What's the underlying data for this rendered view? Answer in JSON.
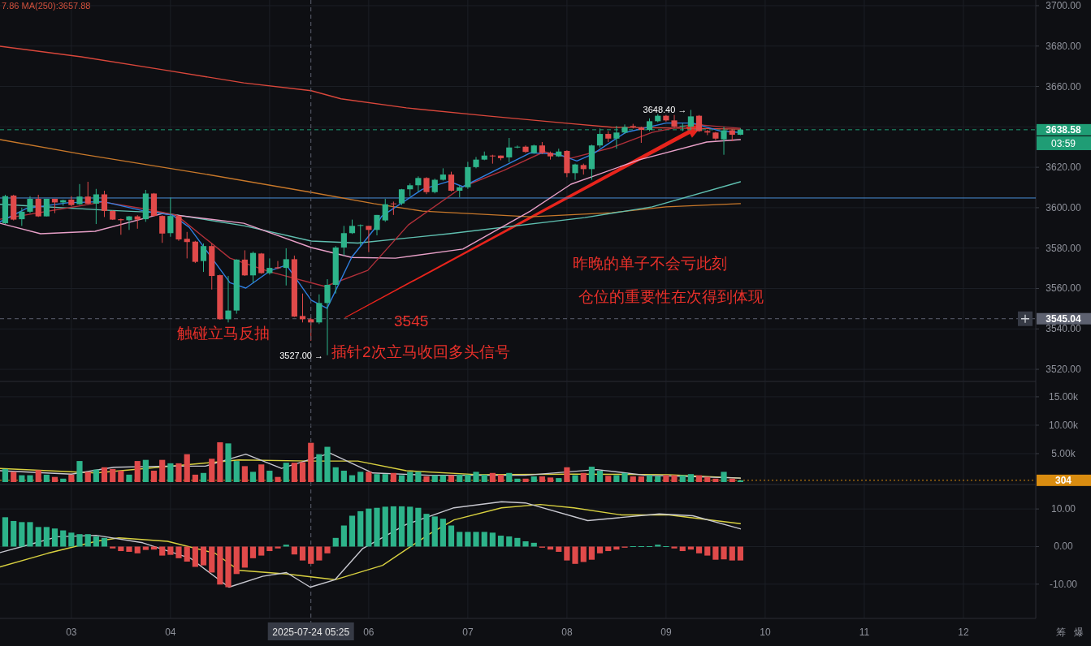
{
  "chart_data": [
    {
      "type": "candlestick",
      "x": [
        2.333,
        2.417,
        2.5,
        2.583,
        2.667,
        2.75,
        2.833,
        2.917,
        3,
        3.083,
        3.167,
        3.25,
        3.333,
        3.417,
        3.5,
        3.583,
        3.667,
        3.75,
        3.833,
        3.917,
        4,
        4.083,
        4.167,
        4.25,
        4.333,
        4.417,
        4.5,
        4.583,
        4.667,
        4.75,
        4.833,
        4.917,
        5,
        5.083,
        5.167,
        5.25,
        5.333,
        5.417,
        5.5,
        5.583,
        5.667,
        5.75,
        5.833,
        5.917,
        6,
        6.083,
        6.167,
        6.25,
        6.333,
        6.417,
        6.5,
        6.583,
        6.667,
        6.75,
        6.833,
        6.917,
        7,
        7.083,
        7.167,
        7.25,
        7.333,
        7.417,
        7.5,
        7.583,
        7.667,
        7.75,
        7.833,
        7.917,
        8,
        8.083,
        8.167,
        8.25,
        8.333,
        8.417,
        8.5,
        8.583,
        8.667,
        8.75,
        8.833,
        8.917,
        9,
        9.083,
        9.167,
        9.25,
        9.333,
        9.417,
        9.5,
        9.583,
        9.667,
        9.75
      ],
      "ohlc": [
        [
          3592.3,
          3606.4,
          3591.9,
          3605.7
        ],
        [
          3606.0,
          3606.4,
          3593.7,
          3594.1
        ],
        [
          3594.3,
          3600.0,
          3591.0,
          3598.0
        ],
        [
          3598.0,
          3605.7,
          3597.3,
          3604.4
        ],
        [
          3604.4,
          3606.4,
          3595.4,
          3595.7
        ],
        [
          3595.7,
          3604.4,
          3595.7,
          3604.4
        ],
        [
          3604.4,
          3604.4,
          3597.3,
          3602.6
        ],
        [
          3602.6,
          3604.0,
          3601.0,
          3603.7
        ],
        [
          3604.0,
          3605.7,
          3600.7,
          3601.3
        ],
        [
          3601.7,
          3611.7,
          3601.4,
          3605.5
        ],
        [
          3605.5,
          3612.8,
          3601.7,
          3602.0
        ],
        [
          3602.0,
          3609.3,
          3591.9,
          3606.6
        ],
        [
          3606.6,
          3608.4,
          3595.4,
          3598.4
        ],
        [
          3598.4,
          3598.6,
          3593.9,
          3594.1
        ],
        [
          3594.3,
          3594.6,
          3586.6,
          3593.8
        ],
        [
          3593.8,
          3595.9,
          3589.0,
          3595.7
        ],
        [
          3595.7,
          3596.3,
          3589.6,
          3594.1
        ],
        [
          3594.3,
          3608.8,
          3593.0,
          3607.0
        ],
        [
          3607.0,
          3607.3,
          3595.7,
          3595.9
        ],
        [
          3595.9,
          3596.2,
          3582.6,
          3587.2
        ],
        [
          3587.4,
          3605.0,
          3585.6,
          3595.9
        ],
        [
          3595.9,
          3596.3,
          3583.6,
          3584.3
        ],
        [
          3584.6,
          3588.0,
          3574.9,
          3583.0
        ],
        [
          3583.2,
          3583.6,
          3572.6,
          3573.2
        ],
        [
          3573.6,
          3582.3,
          3568.2,
          3581.0
        ],
        [
          3581.0,
          3582.3,
          3559.5,
          3566.2
        ],
        [
          3566.6,
          3566.9,
          3544.5,
          3544.8
        ],
        [
          3544.8,
          3566.2,
          3543.2,
          3549.1
        ],
        [
          3549.1,
          3574.5,
          3547.5,
          3574.3
        ],
        [
          3574.3,
          3578.9,
          3566.2,
          3566.5
        ],
        [
          3566.5,
          3578.3,
          3562.9,
          3577.6
        ],
        [
          3577.3,
          3577.6,
          3567.3,
          3567.6
        ],
        [
          3567.6,
          3574.9,
          3566.9,
          3570.2
        ],
        [
          3570.5,
          3573.6,
          3569.6,
          3570.0
        ],
        [
          3570.2,
          3579.9,
          3561.5,
          3574.5
        ],
        [
          3574.5,
          3576.3,
          3545.9,
          3546.1
        ],
        [
          3546.4,
          3557.5,
          3543.2,
          3544.8
        ],
        [
          3544.8,
          3545.5,
          3534.1,
          3543.2
        ],
        [
          3543.2,
          3557.1,
          3542.4,
          3552.8
        ],
        [
          3552.8,
          3564.6,
          3527.0,
          3561.8
        ],
        [
          3561.8,
          3581.0,
          3557.5,
          3580.3
        ],
        [
          3580.3,
          3591.0,
          3576.3,
          3587.4
        ],
        [
          3587.4,
          3594.1,
          3587.0,
          3591.0
        ],
        [
          3591.2,
          3591.7,
          3581.2,
          3591.4
        ],
        [
          3591.0,
          3591.0,
          3578.0,
          3589.0
        ],
        [
          3589.0,
          3596.4,
          3586.3,
          3596.4
        ],
        [
          3593.7,
          3604.4,
          3593.0,
          3601.7
        ],
        [
          3602.1,
          3603.0,
          3596.4,
          3601.7
        ],
        [
          3602.1,
          3609.3,
          3601.3,
          3609.1
        ],
        [
          3609.1,
          3612.0,
          3605.7,
          3611.1
        ],
        [
          3611.1,
          3615.5,
          3608.0,
          3614.7
        ],
        [
          3614.7,
          3615.1,
          3606.7,
          3607.7
        ],
        [
          3607.7,
          3614.4,
          3607.1,
          3613.8
        ],
        [
          3613.8,
          3619.5,
          3613.4,
          3616.4
        ],
        [
          3616.4,
          3617.8,
          3608.0,
          3608.4
        ],
        [
          3608.4,
          3611.1,
          3605.1,
          3610.1
        ],
        [
          3610.1,
          3622.7,
          3609.3,
          3620.1
        ],
        [
          3620.1,
          3625.1,
          3619.5,
          3623.8
        ],
        [
          3623.8,
          3627.8,
          3623.5,
          3625.8
        ],
        [
          3625.8,
          3626.2,
          3621.8,
          3625.4
        ],
        [
          3625.8,
          3625.8,
          3623.5,
          3624.5
        ],
        [
          3624.9,
          3634.5,
          3622.5,
          3629.8
        ],
        [
          3629.8,
          3630.8,
          3629.4,
          3630.2
        ],
        [
          3630.2,
          3630.8,
          3627.1,
          3627.6
        ],
        [
          3627.1,
          3631.2,
          3626.7,
          3630.8
        ],
        [
          3630.8,
          3632.5,
          3626.5,
          3627.1
        ],
        [
          3627.1,
          3627.8,
          3623.8,
          3625.4
        ],
        [
          3625.4,
          3629.2,
          3625.1,
          3627.8
        ],
        [
          3628.1,
          3628.4,
          3615.1,
          3617.1
        ],
        [
          3617.1,
          3621.8,
          3613.8,
          3621.4
        ],
        [
          3621.1,
          3621.8,
          3616.4,
          3619.1
        ],
        [
          3619.1,
          3631.2,
          3613.8,
          3630.8
        ],
        [
          3630.8,
          3639.2,
          3629.8,
          3636.5
        ],
        [
          3636.5,
          3637.9,
          3632.5,
          3634.2
        ],
        [
          3634.2,
          3640.5,
          3629.2,
          3637.2
        ],
        [
          3637.2,
          3641.2,
          3636.5,
          3639.9
        ],
        [
          3640.5,
          3641.5,
          3639.2,
          3640.1
        ],
        [
          3639.6,
          3640.1,
          3632.1,
          3638.5
        ],
        [
          3638.5,
          3644.2,
          3637.9,
          3642.8
        ],
        [
          3642.8,
          3646.3,
          3642.3,
          3645.5
        ],
        [
          3645.5,
          3645.9,
          3642.6,
          3643.2
        ],
        [
          3643.2,
          3645.9,
          3639.6,
          3640.1
        ],
        [
          3640.5,
          3641.9,
          3637.9,
          3640.6
        ],
        [
          3640.1,
          3648.4,
          3638.5,
          3645.2
        ],
        [
          3645.5,
          3645.9,
          3637.5,
          3637.9
        ],
        [
          3637.9,
          3638.5,
          3635.9,
          3637.2
        ],
        [
          3637.2,
          3637.5,
          3633.4,
          3634.2
        ],
        [
          3633.8,
          3640.1,
          3626.2,
          3638.3
        ],
        [
          3638.3,
          3638.8,
          3632.9,
          3636.1
        ],
        [
          3636.1,
          3639.2,
          3635.9,
          3638.58
        ]
      ],
      "colors": [
        "#2db38a",
        "#e04a4a",
        "#2db38a",
        "#2db38a",
        "#e04a4a",
        "#2db38a",
        "#e04a4a",
        "#2db38a",
        "#e04a4a",
        "#2db38a",
        "#e04a4a",
        "#2db38a",
        "#e04a4a",
        "#e04a4a",
        "#e04a4a",
        "#2db38a",
        "#e04a4a",
        "#2db38a",
        "#e04a4a",
        "#e04a4a",
        "#2db38a",
        "#e04a4a",
        "#e04a4a",
        "#e04a4a",
        "#2db38a",
        "#e04a4a",
        "#e04a4a",
        "#2db38a",
        "#2db38a",
        "#e04a4a",
        "#2db38a",
        "#e04a4a",
        "#2db38a",
        "#e04a4a",
        "#2db38a",
        "#e04a4a",
        "#e04a4a",
        "#e04a4a",
        "#2db38a",
        "#2db38a",
        "#2db38a",
        "#2db38a",
        "#2db38a",
        "#2db38a",
        "#e04a4a",
        "#2db38a",
        "#2db38a",
        "#e04a4a",
        "#2db38a",
        "#2db38a",
        "#2db38a",
        "#e04a4a",
        "#2db38a",
        "#2db38a",
        "#e04a4a",
        "#2db38a",
        "#2db38a",
        "#2db38a",
        "#2db38a",
        "#e04a4a",
        "#e04a4a",
        "#2db38a",
        "#2db38a",
        "#e04a4a",
        "#2db38a",
        "#e04a4a",
        "#e04a4a",
        "#2db38a",
        "#e04a4a",
        "#2db38a",
        "#e04a4a",
        "#2db38a",
        "#2db38a",
        "#e04a4a",
        "#2db38a",
        "#2db38a",
        "#e04a4a",
        "#e04a4a",
        "#2db38a",
        "#2db38a",
        "#e04a4a",
        "#e04a4a",
        "#2db38a",
        "#2db38a",
        "#e04a4a",
        "#e04a4a",
        "#e04a4a",
        "#2db38a",
        "#e04a4a",
        "#2db38a"
      ],
      "series": [
        {
          "type": "line",
          "color": "#d9473b",
          "x": [
            2.28,
            3.1,
            3.92,
            4.74,
            5.42,
            5.72,
            6.38,
            7.2,
            8.02,
            8.45,
            9.27,
            9.75
          ],
          "values": [
            3679.9,
            3674.7,
            3668.3,
            3661.8,
            3657.9,
            3653.9,
            3649.4,
            3645.4,
            3641.7,
            3639.8,
            3639.3,
            3638.9
          ]
        },
        {
          "type": "line",
          "color": "#c8782a",
          "x": [
            2.28,
            3.1,
            4.33,
            5.42,
            6.05,
            6.54,
            7.63,
            8.45,
            9.0,
            9.75
          ],
          "values": [
            3633.7,
            3626.5,
            3616.8,
            3607.6,
            3602.0,
            3598.3,
            3595.5,
            3597.5,
            3600.4,
            3602.0
          ]
        },
        {
          "type": "line",
          "color": "#5fbfb0",
          "x": [
            2.28,
            3.37,
            3.92,
            4.74,
            5.42,
            5.89,
            6.81,
            8.18,
            8.86,
            9.75
          ],
          "values": [
            3601.7,
            3598.7,
            3597.5,
            3591.1,
            3583.5,
            3582.5,
            3587.1,
            3595.1,
            3600.4,
            3612.8
          ]
        },
        {
          "type": "line",
          "color": "#e8a0c8",
          "x": [
            2.28,
            2.69,
            3.24,
            3.92,
            4.74,
            5.42,
            5.83,
            6.27,
            6.95,
            7.63,
            8.04,
            8.73,
            9.41,
            9.75
          ],
          "values": [
            3592.3,
            3587.1,
            3588.3,
            3597.1,
            3592.3,
            3580.3,
            3575.4,
            3575.0,
            3579.5,
            3598.3,
            3611.6,
            3623.7,
            3632.5,
            3633.7
          ]
        },
        {
          "type": "line",
          "color": "#b0303a",
          "x": [
            2.28,
            3.32,
            3.78,
            4.06,
            4.6,
            5.01,
            5.56,
            5.99,
            6.4,
            6.95,
            7.36,
            7.77,
            8.04,
            8.45,
            8.86,
            9.27,
            9.75
          ],
          "values": [
            3594.3,
            3602.8,
            3599.1,
            3596.3,
            3575.0,
            3568.2,
            3561.0,
            3569.0,
            3591.5,
            3610.4,
            3618.4,
            3627.7,
            3624.5,
            3629.7,
            3637.3,
            3641.3,
            3639.3
          ]
        },
        {
          "type": "line",
          "color": "#2f7fe0",
          "x": [
            2.28,
            2.55,
            2.96,
            3.32,
            3.73,
            4.02,
            4.19,
            4.6,
            4.76,
            5.01,
            5.17,
            5.42,
            5.58,
            5.83,
            6.05,
            6.13,
            6.54,
            6.81,
            6.95,
            7.36,
            7.63,
            7.91,
            8.1,
            8.26,
            8.59,
            9.0,
            9.27,
            9.55,
            9.75
          ],
          "values": [
            3593.0,
            3599.7,
            3602.4,
            3603.0,
            3598.4,
            3596.3,
            3590.3,
            3562.9,
            3560.2,
            3568.9,
            3571.6,
            3554.2,
            3550.2,
            3575.6,
            3589.0,
            3595.7,
            3609.1,
            3613.1,
            3610.4,
            3620.5,
            3627.1,
            3626.5,
            3623.1,
            3626.5,
            3637.2,
            3641.9,
            3641.9,
            3637.9,
            3637.2
          ]
        }
      ],
      "xlim": [
        2.28,
        12.73
      ],
      "xticks": [
        3,
        4,
        5,
        6,
        7,
        8,
        9,
        10,
        11,
        12
      ],
      "ylim": [
        3514,
        3702.8
      ],
      "yticks": [
        {
          "value": 3520,
          "label": "3520.00"
        },
        {
          "value": 3540,
          "label": "3540.00"
        },
        {
          "value": 3560,
          "label": "3560.00"
        },
        {
          "value": 3580,
          "label": "3580.00"
        },
        {
          "value": 3600,
          "label": "3600.00"
        },
        {
          "value": 3620,
          "label": "3620.00"
        },
        {
          "value": 3640,
          "label": null
        },
        {
          "value": 3660,
          "label": "3660.00"
        },
        {
          "value": 3680,
          "label": "3680.00"
        },
        {
          "value": 3700,
          "label": "3700.00"
        }
      ],
      "tick_labels": "y",
      "grid": true,
      "ref_lines": [
        {
          "axis": "y",
          "value": 3604.8,
          "color": "#4a90d9",
          "line_style": "solid"
        },
        {
          "axis": "y",
          "value": 3638.58,
          "label": "3638.58",
          "color": "#1f9d75",
          "line_style": "dashed"
        },
        {
          "axis": "y",
          "value": 3545.04,
          "label": "3545.04",
          "color": "#5d6170",
          "line_style": "dashed"
        },
        {
          "axis": "x",
          "value": 5.4167,
          "label": "2025-07-24 05:25",
          "color": "#5d6170",
          "line_style": "dashed"
        }
      ],
      "annotations": [
        "7.86  MA(250):3657.88",
        "03:59",
        "触碰立马反抽",
        "3545",
        "插针2次立马收回多头信号",
        "昨晚的单子不会亏此刻",
        "仓位的重要性在次得到体现",
        {
          "text": "3648.40 →",
          "x": 9.25,
          "y": 3648.4
        },
        {
          "text": "3527.00 →",
          "x": 5.583,
          "y": 3527.0
        }
      ]
    },
    {
      "type": "bar",
      "x": [
        2.333,
        2.417,
        2.5,
        2.583,
        2.667,
        2.75,
        2.833,
        2.917,
        3,
        3.083,
        3.167,
        3.25,
        3.333,
        3.417,
        3.5,
        3.583,
        3.667,
        3.75,
        3.833,
        3.917,
        4,
        4.083,
        4.167,
        4.25,
        4.333,
        4.417,
        4.5,
        4.583,
        4.667,
        4.75,
        4.833,
        4.917,
        5,
        5.083,
        5.167,
        5.25,
        5.333,
        5.417,
        5.5,
        5.583,
        5.667,
        5.75,
        5.833,
        5.917,
        6,
        6.083,
        6.167,
        6.25,
        6.333,
        6.417,
        6.5,
        6.583,
        6.667,
        6.75,
        6.833,
        6.917,
        7,
        7.083,
        7.167,
        7.25,
        7.333,
        7.417,
        7.5,
        7.583,
        7.667,
        7.75,
        7.833,
        7.917,
        8,
        8.083,
        8.167,
        8.25,
        8.333,
        8.417,
        8.5,
        8.583,
        8.667,
        8.75,
        8.833,
        8.917,
        9,
        9.083,
        9.167,
        9.25,
        9.333,
        9.417,
        9.5,
        9.583,
        9.667,
        9.75
      ],
      "values": [
        2.3,
        1.8,
        1.2,
        1.2,
        2.1,
        1.3,
        0.9,
        0.6,
        1.3,
        3.7,
        1.8,
        2.2,
        2.6,
        2.3,
        2.0,
        1.3,
        3.7,
        3.9,
        2.0,
        3.9,
        3.3,
        3.3,
        4.9,
        1.3,
        1.6,
        4.1,
        7.0,
        6.8,
        3.7,
        2.8,
        1.8,
        3.1,
        2.0,
        0.9,
        3.4,
        3.4,
        3.5,
        6.9,
        4.9,
        6.2,
        2.6,
        2.0,
        1.2,
        1.8,
        1.8,
        1.4,
        1.4,
        1.6,
        1.2,
        1.8,
        1.8,
        1.0,
        1.2,
        1.2,
        1.2,
        1.3,
        1.3,
        1.8,
        1.3,
        1.6,
        1.3,
        1.6,
        0.6,
        0.6,
        1.0,
        1.0,
        0.8,
        0.7,
        2.6,
        1.2,
        1.6,
        2.7,
        2.0,
        1.1,
        1.2,
        1.6,
        1.0,
        1.0,
        1.2,
        1.0,
        1.2,
        1.2,
        1.2,
        1.4,
        1.2,
        0.9,
        0.6,
        1.8,
        0.6,
        0.304
      ],
      "colors": [
        "#2db38a",
        "#e04a4a",
        "#2db38a",
        "#2db38a",
        "#e04a4a",
        "#2db38a",
        "#e04a4a",
        "#2db38a",
        "#e04a4a",
        "#2db38a",
        "#e04a4a",
        "#2db38a",
        "#e04a4a",
        "#e04a4a",
        "#e04a4a",
        "#2db38a",
        "#e04a4a",
        "#2db38a",
        "#e04a4a",
        "#e04a4a",
        "#2db38a",
        "#e04a4a",
        "#e04a4a",
        "#e04a4a",
        "#2db38a",
        "#e04a4a",
        "#e04a4a",
        "#2db38a",
        "#2db38a",
        "#e04a4a",
        "#2db38a",
        "#e04a4a",
        "#2db38a",
        "#e04a4a",
        "#2db38a",
        "#e04a4a",
        "#e04a4a",
        "#e04a4a",
        "#2db38a",
        "#2db38a",
        "#2db38a",
        "#2db38a",
        "#2db38a",
        "#2db38a",
        "#e04a4a",
        "#2db38a",
        "#2db38a",
        "#e04a4a",
        "#2db38a",
        "#2db38a",
        "#2db38a",
        "#e04a4a",
        "#2db38a",
        "#2db38a",
        "#e04a4a",
        "#2db38a",
        "#2db38a",
        "#2db38a",
        "#2db38a",
        "#e04a4a",
        "#e04a4a",
        "#2db38a",
        "#2db38a",
        "#e04a4a",
        "#2db38a",
        "#e04a4a",
        "#e04a4a",
        "#2db38a",
        "#e04a4a",
        "#2db38a",
        "#e04a4a",
        "#2db38a",
        "#2db38a",
        "#e04a4a",
        "#2db38a",
        "#2db38a",
        "#e04a4a",
        "#e04a4a",
        "#2db38a",
        "#2db38a",
        "#e04a4a",
        "#e04a4a",
        "#2db38a",
        "#2db38a",
        "#e04a4a",
        "#e04a4a",
        "#e04a4a",
        "#2db38a",
        "#e04a4a",
        "#2db38a"
      ],
      "series": [
        {
          "type": "line",
          "color": "#d8d040",
          "x": [
            2.28,
            3.25,
            4.2,
            4.69,
            5.41,
            5.89,
            6.38,
            7.1,
            8.07,
            9.03,
            9.75
          ],
          "values": [
            2.4,
            1.6,
            3.1,
            3.9,
            3.7,
            3.7,
            2.0,
            1.3,
            1.4,
            1.3,
            0.7
          ]
        },
        {
          "type": "line",
          "color": "#c8c8d0",
          "x": [
            2.28,
            3.0,
            3.43,
            3.97,
            4.35,
            4.76,
            5.12,
            5.61,
            6.04,
            6.61,
            7.58,
            8.3,
            8.79,
            9.75
          ],
          "values": [
            2.0,
            1.4,
            2.6,
            2.8,
            2.8,
            4.9,
            2.4,
            5.1,
            1.6,
            1.2,
            1.2,
            2.2,
            1.2,
            0.7
          ]
        }
      ],
      "xlim": [
        2.28,
        12.73
      ],
      "xticks": [
        3,
        4,
        5,
        6,
        7,
        8,
        9,
        10,
        11,
        12
      ],
      "ylim": [
        -0.43,
        17.7
      ],
      "yticks": [
        {
          "value": 5,
          "label": "5.00k"
        },
        {
          "value": 10,
          "label": "10.00k"
        },
        {
          "value": 15,
          "label": "15.00k"
        }
      ],
      "tick_labels": "y",
      "grid": true,
      "ref_lines": [
        {
          "axis": "y",
          "value": 0.304,
          "label": "304",
          "color": "#d98c10",
          "line_style": "dotted"
        }
      ]
    },
    {
      "type": "bar",
      "x": [
        2.333,
        2.417,
        2.5,
        2.583,
        2.667,
        2.75,
        2.833,
        2.917,
        3,
        3.083,
        3.167,
        3.25,
        3.333,
        3.417,
        3.5,
        3.583,
        3.667,
        3.75,
        3.833,
        3.917,
        4,
        4.083,
        4.167,
        4.25,
        4.333,
        4.417,
        4.5,
        4.583,
        4.667,
        4.75,
        4.833,
        4.917,
        5,
        5.083,
        5.167,
        5.25,
        5.333,
        5.417,
        5.5,
        5.583,
        5.667,
        5.75,
        5.833,
        5.917,
        6,
        6.083,
        6.167,
        6.25,
        6.333,
        6.417,
        6.5,
        6.583,
        6.667,
        6.75,
        6.833,
        6.917,
        7,
        7.083,
        7.167,
        7.25,
        7.333,
        7.417,
        7.5,
        7.583,
        7.667,
        7.75,
        7.833,
        7.917,
        8,
        8.083,
        8.167,
        8.25,
        8.333,
        8.417,
        8.5,
        8.583,
        8.667,
        8.75,
        8.833,
        8.917,
        9,
        9.083,
        9.167,
        9.25,
        9.333,
        9.417,
        9.5,
        9.583,
        9.667,
        9.75
      ],
      "values": [
        7.8,
        6.8,
        6.5,
        6.5,
        5.2,
        5.2,
        4.8,
        4.3,
        3.7,
        3.3,
        3.3,
        2.7,
        2.3,
        -0.5,
        -1.2,
        -1.4,
        -1.8,
        -0.9,
        -0.8,
        -2.4,
        -2.2,
        -3.1,
        -4.0,
        -5.4,
        -5.0,
        -6.9,
        -10.1,
        -10.8,
        -7.3,
        -5.6,
        -3.1,
        -2.4,
        -1.2,
        -0.5,
        0.5,
        -2.1,
        -3.7,
        -4.6,
        -3.7,
        -1.8,
        2.3,
        5.6,
        8.2,
        9.4,
        10.1,
        10.3,
        10.6,
        10.7,
        10.7,
        10.6,
        10.3,
        8.7,
        8.0,
        7.4,
        5.6,
        3.9,
        3.9,
        3.9,
        3.9,
        3.7,
        2.9,
        2.7,
        2.3,
        1.4,
        1.0,
        -0.3,
        -0.8,
        -1.4,
        -3.7,
        -4.6,
        -4.1,
        -3.5,
        -1.8,
        -1.2,
        -0.8,
        -0.3,
        0.1,
        0.1,
        0.1,
        0.5,
        0.1,
        -0.5,
        -1.2,
        -0.8,
        -1.8,
        -2.4,
        -3.5,
        -3.4,
        -3.7,
        -3.7
      ],
      "colors": [
        "#2db38a",
        "#2db38a",
        "#2db38a",
        "#2db38a",
        "#2db38a",
        "#2db38a",
        "#2db38a",
        "#2db38a",
        "#2db38a",
        "#2db38a",
        "#2db38a",
        "#2db38a",
        "#2db38a",
        "#e04a4a",
        "#e04a4a",
        "#e04a4a",
        "#e04a4a",
        "#e04a4a",
        "#e04a4a",
        "#e04a4a",
        "#e04a4a",
        "#e04a4a",
        "#e04a4a",
        "#e04a4a",
        "#e04a4a",
        "#e04a4a",
        "#e04a4a",
        "#e04a4a",
        "#e04a4a",
        "#e04a4a",
        "#e04a4a",
        "#e04a4a",
        "#e04a4a",
        "#e04a4a",
        "#2db38a",
        "#e04a4a",
        "#e04a4a",
        "#e04a4a",
        "#e04a4a",
        "#e04a4a",
        "#2db38a",
        "#2db38a",
        "#2db38a",
        "#2db38a",
        "#2db38a",
        "#2db38a",
        "#2db38a",
        "#2db38a",
        "#2db38a",
        "#2db38a",
        "#2db38a",
        "#2db38a",
        "#2db38a",
        "#2db38a",
        "#2db38a",
        "#2db38a",
        "#2db38a",
        "#2db38a",
        "#2db38a",
        "#2db38a",
        "#2db38a",
        "#2db38a",
        "#2db38a",
        "#2db38a",
        "#2db38a",
        "#e04a4a",
        "#e04a4a",
        "#e04a4a",
        "#e04a4a",
        "#e04a4a",
        "#e04a4a",
        "#e04a4a",
        "#e04a4a",
        "#e04a4a",
        "#e04a4a",
        "#e04a4a",
        "#2db38a",
        "#2db38a",
        "#2db38a",
        "#2db38a",
        "#2db38a",
        "#e04a4a",
        "#e04a4a",
        "#e04a4a",
        "#e04a4a",
        "#e04a4a",
        "#e04a4a",
        "#e04a4a",
        "#e04a4a",
        "#e04a4a"
      ],
      "series": [
        {
          "type": "line",
          "color": "#d8d040",
          "x": [
            2.28,
            2.76,
            3.25,
            3.48,
            3.97,
            4.45,
            4.69,
            5.17,
            5.66,
            6.14,
            6.61,
            6.86,
            7.34,
            7.73,
            8.07,
            8.55,
            9.03,
            9.75
          ],
          "values": [
            -5.4,
            -1.8,
            1.4,
            2.3,
            1.4,
            -1.8,
            -6.3,
            -7.3,
            -8.8,
            -5.0,
            3.3,
            7.1,
            10.3,
            11.2,
            10.3,
            8.4,
            8.4,
            6.1
          ]
        },
        {
          "type": "line",
          "color": "#c8c8d0",
          "x": [
            2.28,
            2.57,
            2.86,
            3.25,
            3.72,
            4.2,
            4.59,
            4.93,
            5.17,
            5.41,
            5.66,
            5.94,
            6.38,
            6.86,
            7.34,
            7.58,
            8.21,
            8.93,
            9.27,
            9.75
          ],
          "values": [
            -1.6,
            0.5,
            2.6,
            3.0,
            1.0,
            -3.1,
            -10.8,
            -7.9,
            -6.9,
            -10.8,
            -8.8,
            -0.5,
            5.9,
            10.3,
            11.9,
            11.6,
            6.9,
            8.7,
            8.2,
            4.7
          ]
        }
      ],
      "xlim": [
        2.28,
        12.73
      ],
      "xticks": [
        {
          "value": 3,
          "label": "03"
        },
        {
          "value": 4,
          "label": "04"
        },
        {
          "value": 5,
          "label": null
        },
        {
          "value": 6,
          "label": "06"
        },
        {
          "value": 7,
          "label": "07"
        },
        {
          "value": 8,
          "label": "08"
        },
        {
          "value": 9,
          "label": "09"
        },
        {
          "value": 10,
          "label": "10"
        },
        {
          "value": 11,
          "label": "11"
        },
        {
          "value": 12,
          "label": "12"
        }
      ],
      "ylim": [
        -19.1,
        16.5
      ],
      "yticks": [
        {
          "value": -10,
          "label": "-10.00"
        },
        {
          "value": 0,
          "label": "0.00"
        },
        {
          "value": 10,
          "label": "10.00"
        }
      ],
      "grid": true,
      "annotations": [
        "筹",
        "爆"
      ]
    }
  ]
}
